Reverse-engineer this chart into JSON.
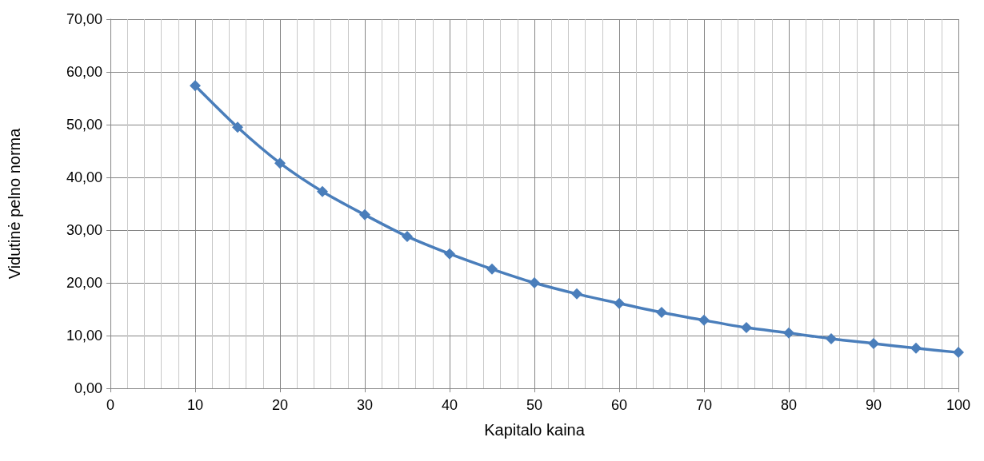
{
  "chart_data": {
    "type": "line",
    "xlabel": "Kapitalo kaina",
    "ylabel": "Vidutinė pelno norma",
    "x": [
      10,
      15,
      20,
      25,
      30,
      35,
      40,
      45,
      50,
      55,
      60,
      65,
      70,
      75,
      80,
      85,
      90,
      95,
      100
    ],
    "series": [
      {
        "color": "#4a7ebb",
        "values": [
          57.4,
          49.5,
          42.7,
          37.3,
          32.9,
          28.8,
          25.5,
          22.6,
          20.0,
          17.9,
          16.1,
          14.4,
          12.9,
          11.5,
          10.5,
          9.4,
          8.5,
          7.6,
          6.8
        ]
      }
    ],
    "xlim": [
      0,
      100
    ],
    "xticks": [
      0,
      10,
      20,
      30,
      40,
      50,
      60,
      70,
      80,
      90,
      100
    ],
    "ylim": [
      0,
      70
    ],
    "yticks": [
      {
        "value": 0,
        "label": "0,00"
      },
      {
        "value": 10,
        "label": "10,00"
      },
      {
        "value": 20,
        "label": "20,00"
      },
      {
        "value": 30,
        "label": "30,00"
      },
      {
        "value": 40,
        "label": "40,00"
      },
      {
        "value": 50,
        "label": "50,00"
      },
      {
        "value": 60,
        "label": "60,00"
      },
      {
        "value": 70,
        "label": "70,00"
      }
    ],
    "grid": true,
    "marker": "diamond",
    "line_style": "solid"
  }
}
